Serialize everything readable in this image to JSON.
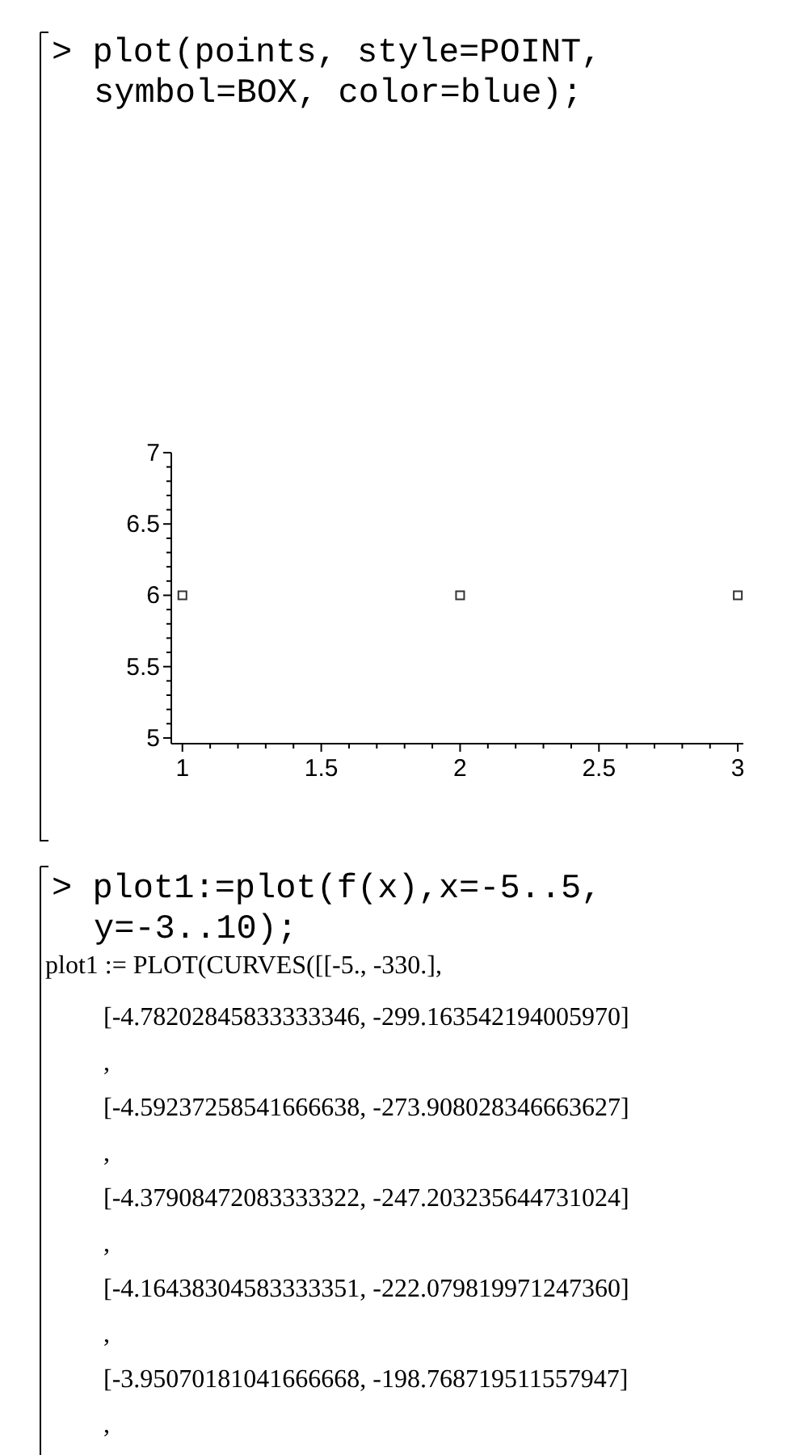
{
  "chart_data": {
    "type": "scatter",
    "title": "> plot(points, style=POINT, symbol=BOX, color=blue);",
    "x": [
      1,
      2,
      3
    ],
    "series": [
      {
        "color": "#333333",
        "values": [
          6,
          6,
          6
        ]
      }
    ],
    "marker": "square",
    "xlim": [
      0.96,
      3.02
    ],
    "xticks": [
      1,
      {
        "value": 1.1,
        "label": null
      },
      {
        "value": 1.2,
        "label": null
      },
      {
        "value": 1.3,
        "label": null
      },
      {
        "value": 1.4,
        "label": null
      },
      1.5,
      {
        "value": 1.6,
        "label": null
      },
      {
        "value": 1.7,
        "label": null
      },
      {
        "value": 1.8,
        "label": null
      },
      {
        "value": 1.9,
        "label": null
      },
      2,
      {
        "value": 2.1,
        "label": null
      },
      {
        "value": 2.2,
        "label": null
      },
      {
        "value": 2.3,
        "label": null
      },
      {
        "value": 2.4,
        "label": null
      },
      2.5,
      {
        "value": 2.6,
        "label": null
      },
      {
        "value": 2.7,
        "label": null
      },
      {
        "value": 2.8,
        "label": null
      },
      {
        "value": 2.9,
        "label": null
      },
      3
    ],
    "ylim": [
      4.96,
      7
    ],
    "yticks": [
      5,
      {
        "value": 5.1,
        "label": null
      },
      {
        "value": 5.2,
        "label": null
      },
      {
        "value": 5.3,
        "label": null
      },
      {
        "value": 5.4,
        "label": null
      },
      5.5,
      {
        "value": 5.6,
        "label": null
      },
      {
        "value": 5.7,
        "label": null
      },
      {
        "value": 5.8,
        "label": null
      },
      {
        "value": 5.9,
        "label": null
      },
      6,
      {
        "value": 6.1,
        "label": null
      },
      {
        "value": 6.2,
        "label": null
      },
      {
        "value": 6.3,
        "label": null
      },
      {
        "value": 6.4,
        "label": null
      },
      6.5,
      {
        "value": 6.6,
        "label": null
      },
      {
        "value": 6.7,
        "label": null
      },
      {
        "value": 6.8,
        "label": null
      },
      {
        "value": 6.9,
        "label": null
      },
      7
    ],
    "annotations": [
      "> plot1:=plot(f(x),x=-5..5, y=-3..10);",
      "plot1 := PLOT(CURVES([[-5., -330.],",
      "[-4.78202845833333346, -299.163542194005970]",
      ",",
      "[-4.59237258541666638, -273.908028346663627]",
      ",",
      "[-4.37908472083333322, -247.203235644731024]",
      ",",
      "[-4.16438304583333351, -222.079819971247360]",
      ",",
      "[-3.95070181041666668, -198.768719511557947]",
      ","
    ]
  }
}
